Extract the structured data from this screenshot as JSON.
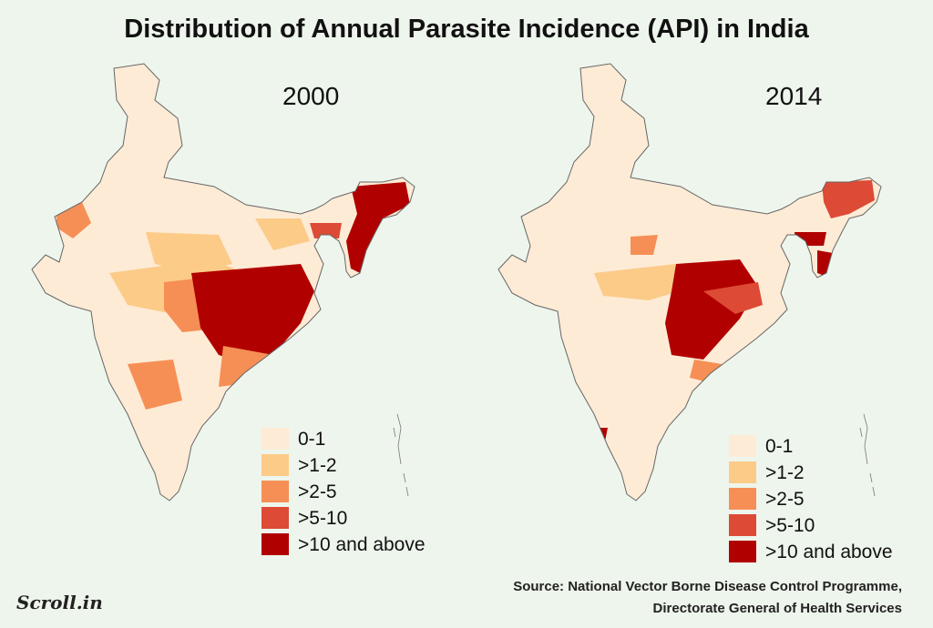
{
  "title": "Distribution of Annual Parasite Incidence (API) in India",
  "maps": [
    {
      "year": "2000"
    },
    {
      "year": "2014"
    }
  ],
  "legend": [
    {
      "label": "0-1",
      "color": "#fdebd6"
    },
    {
      "label": ">1-2",
      "color": "#fccb88"
    },
    {
      "label": ">2-5",
      "color": "#f68f55"
    },
    {
      "label": ">5-10",
      "color": "#dd4a35"
    },
    {
      "label": ">10 and above",
      "color": "#b10000"
    }
  ],
  "source": {
    "line1": "Source: National Vector Borne Disease Control Programme,",
    "line2": "Directorate General of Health Services"
  },
  "logo": "Scroll.in"
}
